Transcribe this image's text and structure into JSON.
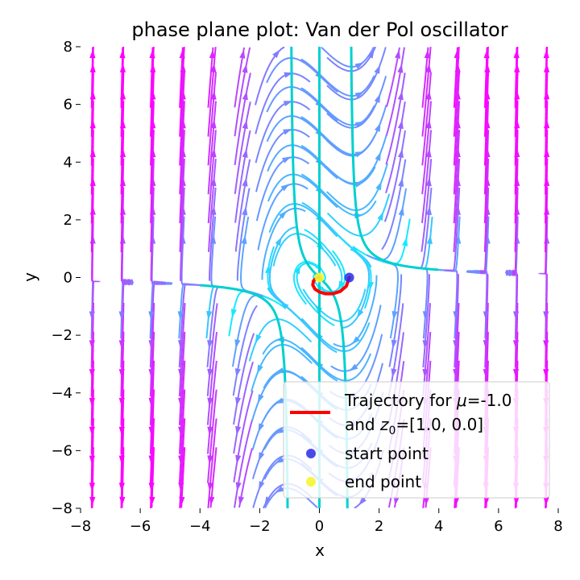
{
  "chart_data": {
    "type": "streamplot",
    "title": "phase plane plot: Van der Pol oscillator",
    "xlabel": "x",
    "ylabel": "y",
    "xlim": [
      -8,
      8
    ],
    "ylim": [
      -8,
      8
    ],
    "xticks": [
      -8,
      -6,
      -4,
      -2,
      0,
      2,
      4,
      6,
      8
    ],
    "yticks": [
      -8,
      -6,
      -4,
      -2,
      0,
      2,
      4,
      6,
      8
    ],
    "tick_labels_x": [
      "−8",
      "−6",
      "−4",
      "−2",
      "0",
      "2",
      "4",
      "6",
      "8"
    ],
    "tick_labels_y": [
      "−8",
      "−6",
      "−4",
      "−2",
      "0",
      "2",
      "4",
      "6",
      "8"
    ],
    "grid": false,
    "mu": -1.0,
    "z0": [
      1.0,
      0.0
    ],
    "colormap": "cool",
    "colors": {
      "trajectory": "#ff0000",
      "start": "#2a2ae6",
      "end": "#f5f532",
      "nullcline": "#00d0d0"
    },
    "start_point": [
      1.0,
      0.0
    ],
    "end_point": [
      0.0,
      0.0
    ],
    "trajectory": [
      [
        1.0,
        0.0
      ],
      [
        0.9,
        -0.3
      ],
      [
        0.7,
        -0.48
      ],
      [
        0.45,
        -0.56
      ],
      [
        0.2,
        -0.56
      ],
      [
        0.0,
        -0.5
      ],
      [
        -0.15,
        -0.4
      ],
      [
        -0.22,
        -0.26
      ],
      [
        -0.2,
        -0.12
      ],
      [
        -0.12,
        -0.03
      ],
      [
        -0.04,
        0.0
      ],
      [
        0.0,
        0.0
      ]
    ],
    "legend": {
      "position": "lower-right",
      "line1": "Trajectory for ",
      "mu_symbol": "μ",
      "line1b": "=-1.0",
      "line2a": "and ",
      "z_symbol": "z",
      "z_sub": "0",
      "line2b": "=[1.0, 0.0]",
      "start_label": "start point",
      "end_label": "end point"
    }
  }
}
